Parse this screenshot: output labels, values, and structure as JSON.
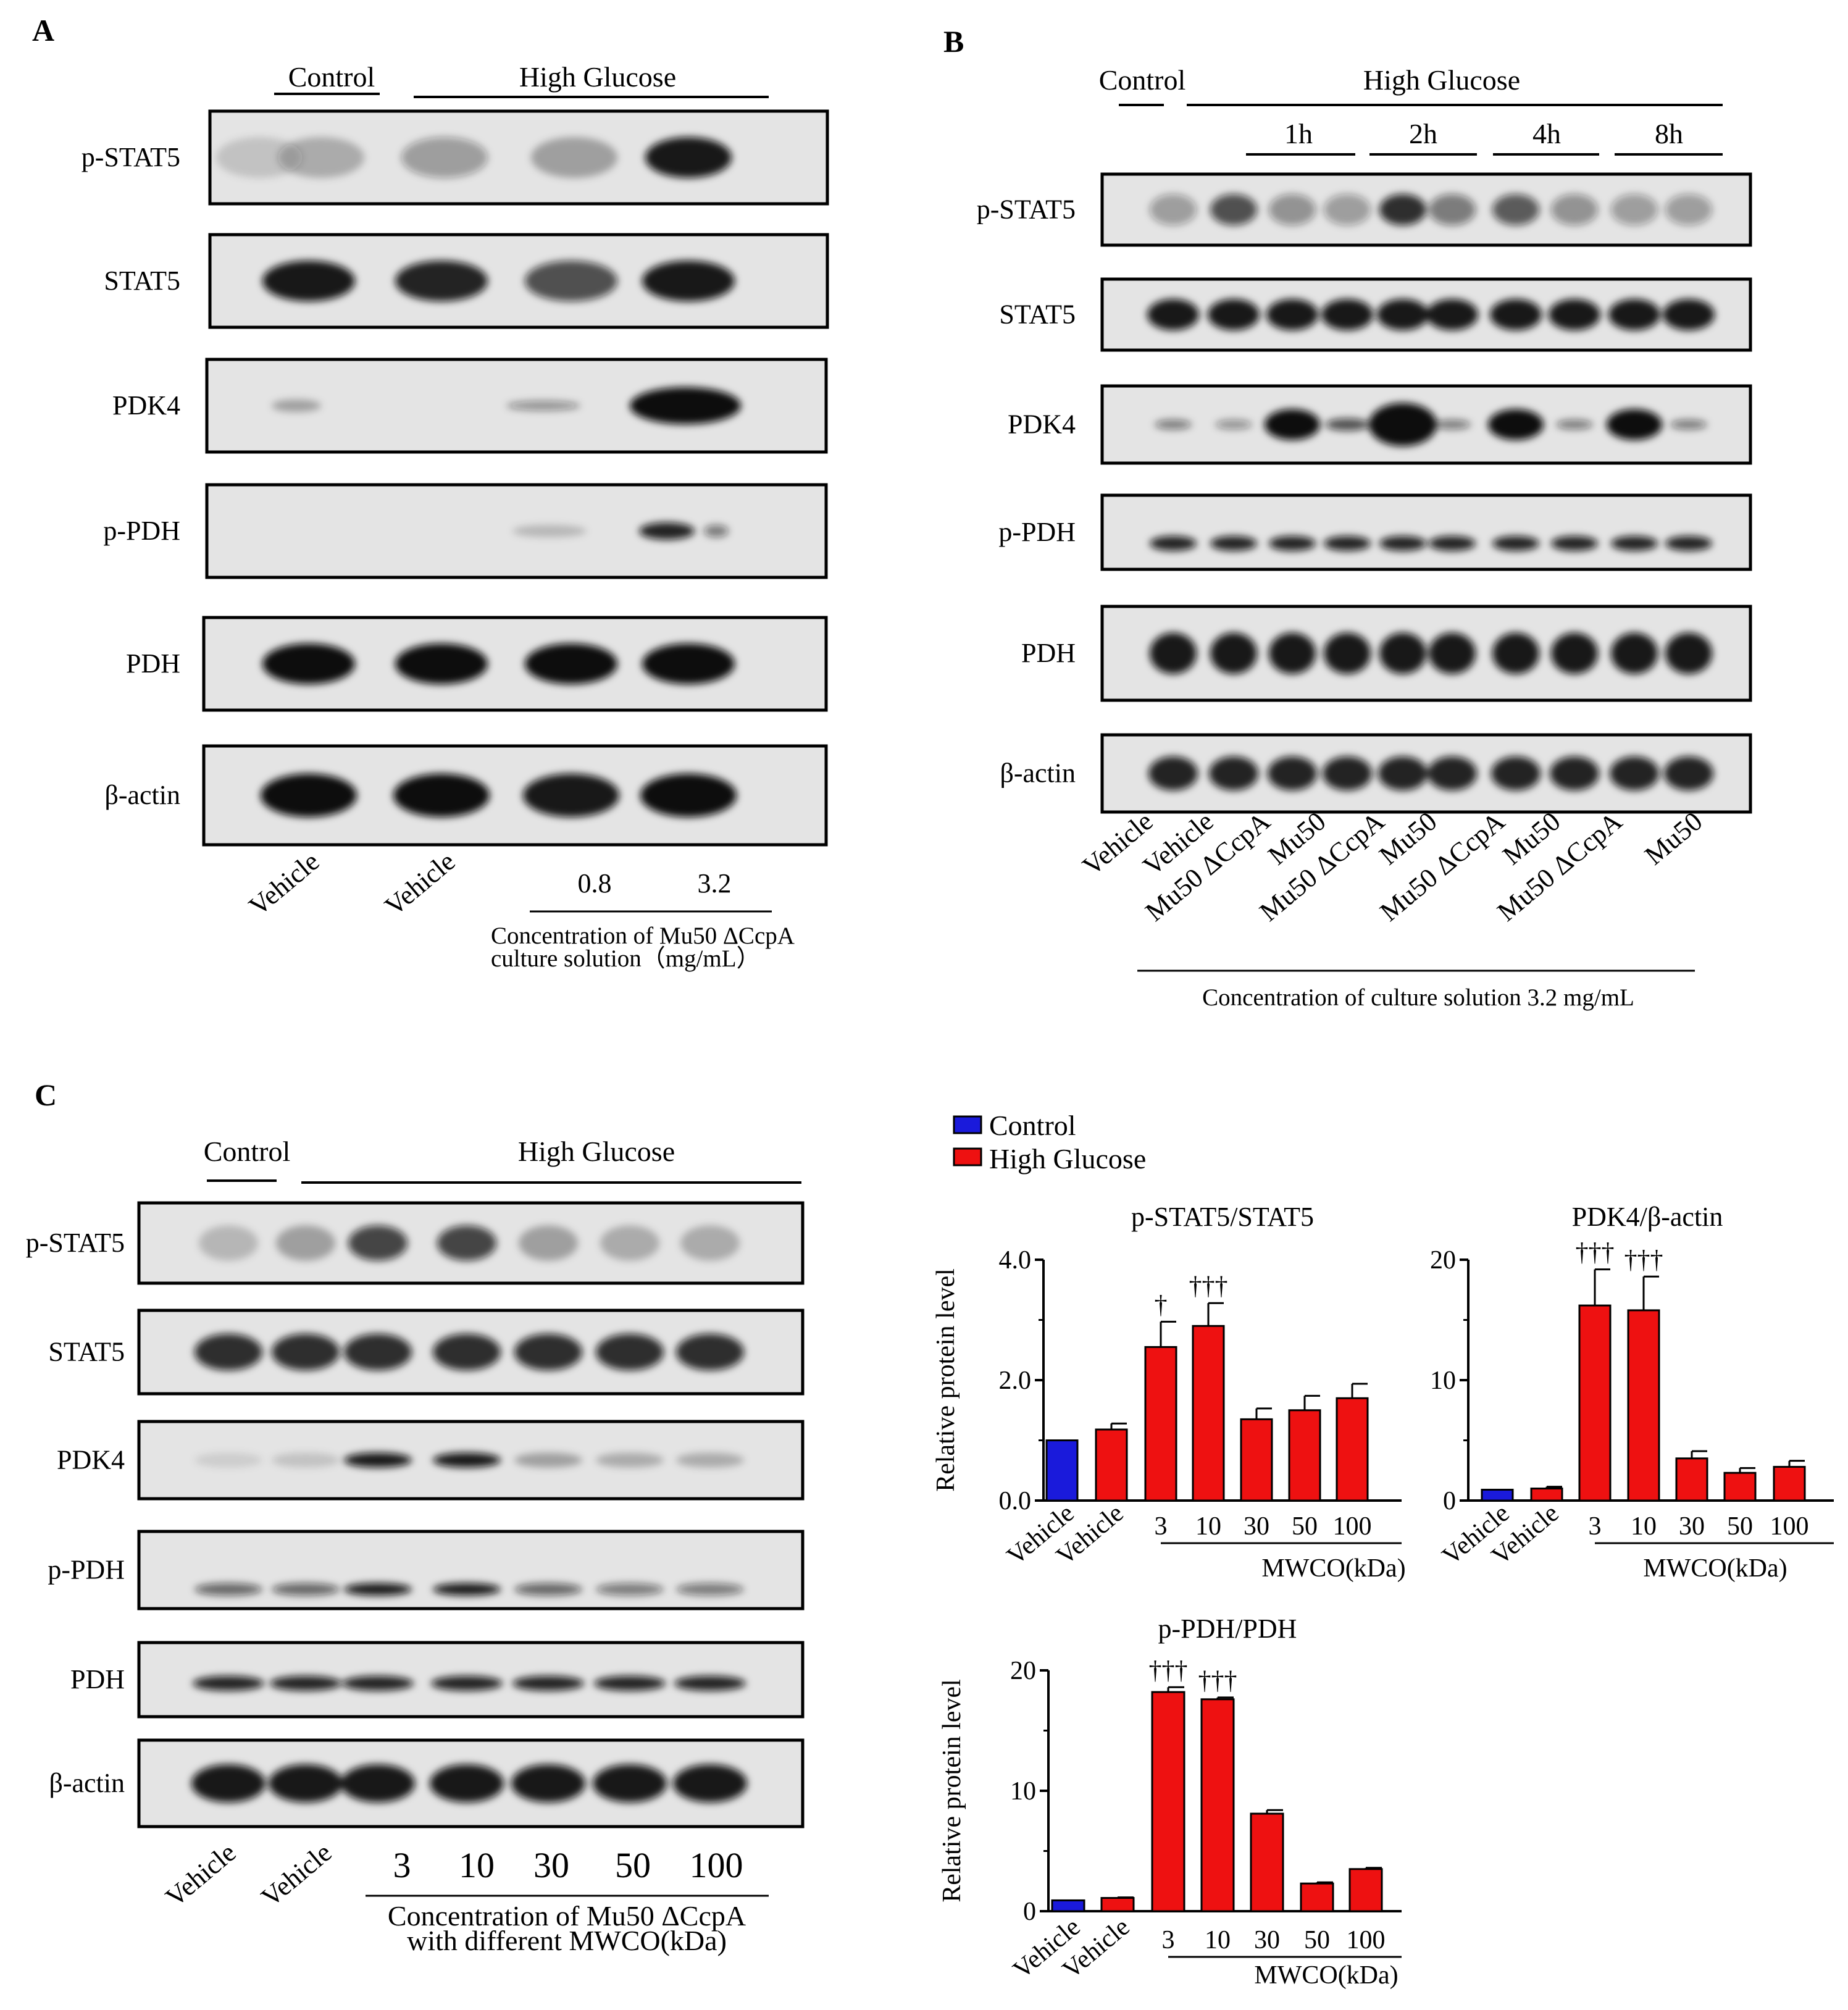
{
  "panels": {
    "A": {
      "letter": "A",
      "group_control": "Control",
      "group_hg": "High Glucose",
      "blots": [
        "p-STAT5",
        "STAT5",
        "PDK4",
        "p-PDH",
        "PDH",
        "β-actin"
      ],
      "lanes": [
        "Vehicle",
        "Vehicle",
        "0.8",
        "3.2"
      ],
      "caption_line1": "Concentration of Mu50 ΔCcpA",
      "caption_line2": "culture solution（mg/mL）"
    },
    "B": {
      "letter": "B",
      "group_control": "Control",
      "group_hg": "High Glucose",
      "times": [
        "1h",
        "2h",
        "4h",
        "8h"
      ],
      "blots": [
        "p-STAT5",
        "STAT5",
        "PDK4",
        "p-PDH",
        "PDH",
        "β-actin"
      ],
      "lanes": [
        "Vehicle",
        "Vehicle",
        "Mu50 ΔCcpA",
        "Mu50",
        "Mu50 ΔCcpA",
        "Mu50",
        "Mu50 ΔCcpA",
        "Mu50",
        "Mu50 ΔCcpA",
        "Mu50"
      ],
      "caption": "Concentration of  culture solution 3.2 mg/mL"
    },
    "C": {
      "letter": "C",
      "group_control": "Control",
      "group_hg": "High Glucose",
      "blots": [
        "p-STAT5",
        "STAT5",
        "PDK4",
        "p-PDH",
        "PDH",
        "β-actin"
      ],
      "lanes": [
        "Vehicle",
        "Vehicle",
        "3",
        "10",
        "30",
        "50",
        "100"
      ],
      "caption_line1": "Concentration of Mu50 ΔCcpA",
      "caption_line2": "with different MWCO(kDa)"
    }
  },
  "legend": [
    {
      "label": "Control",
      "color": "#1a1adb"
    },
    {
      "label": "High Glucose",
      "color": "#ee1111"
    }
  ],
  "chart_data": [
    {
      "type": "bar",
      "title": "p-STAT5/STAT5",
      "ylabel": "Relative protein level",
      "xlabel": "MWCO(kDa)",
      "categories": [
        "Vehicle",
        "Vehicle",
        "3",
        "10",
        "30",
        "50",
        "100"
      ],
      "groups": [
        "Control",
        "High Glucose",
        "High Glucose",
        "High Glucose",
        "High Glucose",
        "High Glucose",
        "High Glucose"
      ],
      "values": [
        1.0,
        1.18,
        2.55,
        2.9,
        1.35,
        1.5,
        1.7
      ],
      "errors": [
        0,
        0.1,
        0.42,
        0.38,
        0.18,
        0.24,
        0.24
      ],
      "significance": [
        "",
        "",
        "†",
        "†††",
        "",
        "",
        ""
      ],
      "ylim": [
        0,
        4.0
      ],
      "yticks": [
        "0.0",
        "2.0",
        "4.0"
      ],
      "ytick_values": [
        0,
        2,
        4
      ]
    },
    {
      "type": "bar",
      "title": "PDK4/β-actin",
      "ylabel": "",
      "xlabel": "MWCO(kDa)",
      "categories": [
        "Vehicle",
        "Vehicle",
        "3",
        "10",
        "30",
        "50",
        "100"
      ],
      "groups": [
        "Control",
        "High Glucose",
        "High Glucose",
        "High Glucose",
        "High Glucose",
        "High Glucose",
        "High Glucose"
      ],
      "values": [
        0.9,
        1.0,
        16.2,
        15.8,
        3.5,
        2.3,
        2.8
      ],
      "errors": [
        0,
        0.15,
        3.0,
        2.8,
        0.6,
        0.4,
        0.5
      ],
      "significance": [
        "",
        "",
        "†††",
        "†††",
        "",
        "",
        ""
      ],
      "ylim": [
        0,
        20
      ],
      "yticks": [
        "0",
        "10",
        "20"
      ],
      "ytick_values": [
        0,
        10,
        20
      ]
    },
    {
      "type": "bar",
      "title": "p-PDH/PDH",
      "ylabel": "Relative protein level",
      "xlabel": "MWCO(kDa)",
      "categories": [
        "Vehicle",
        "Vehicle",
        "3",
        "10",
        "30",
        "50",
        "100"
      ],
      "groups": [
        "Control",
        "High Glucose",
        "High Glucose",
        "High Glucose",
        "High Glucose",
        "High Glucose",
        "High Glucose"
      ],
      "values": [
        0.9,
        1.1,
        18.2,
        17.6,
        8.1,
        2.3,
        3.5
      ],
      "errors": [
        0,
        0.05,
        0.4,
        0.15,
        0.3,
        0.1,
        0.1
      ],
      "significance": [
        "",
        "",
        "†††",
        "†††",
        "",
        "",
        ""
      ],
      "ylim": [
        0,
        20
      ],
      "yticks": [
        "0",
        "10",
        "20"
      ],
      "ytick_values": [
        0,
        10,
        20
      ]
    }
  ]
}
